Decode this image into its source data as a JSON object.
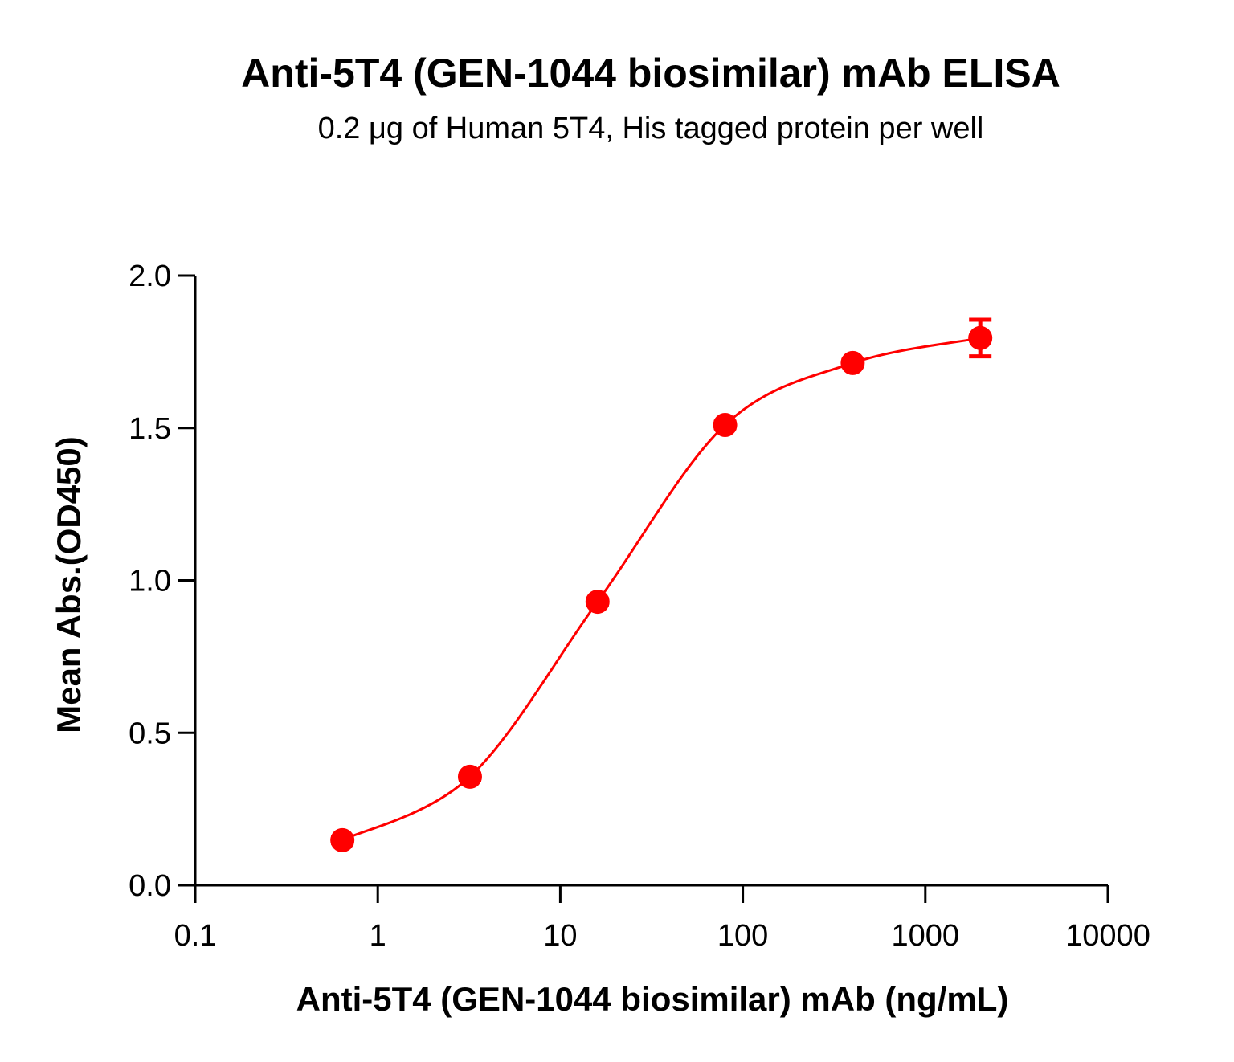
{
  "chart_data": {
    "type": "scatter",
    "title": "Anti-5T4 (GEN-1044 biosimilar) mAb ELISA",
    "subtitle": "0.2 μg of Human 5T4, His tagged protein per well",
    "x_label": "Anti-5T4 (GEN-1044 biosimilar) mAb (ng/mL)",
    "y_label": "Mean Abs.(OD450)",
    "xscale": "log",
    "xlim": [
      0.1,
      10000
    ],
    "xticks": [
      0.1,
      1,
      10,
      100,
      1000,
      10000
    ],
    "ylim": [
      0,
      2
    ],
    "yticks": [
      {
        "value": 0,
        "label": "0.0"
      },
      0.5,
      {
        "value": 1,
        "label": "1.0"
      },
      1.5,
      {
        "value": 2,
        "label": "2.0"
      }
    ],
    "grid": false,
    "series": [
      {
        "color": "#ff0000",
        "x": [
          0.64,
          3.2,
          16,
          80,
          400,
          2000
        ],
        "values": [
          0.148,
          0.356,
          0.93,
          1.51,
          1.713,
          1.795
        ],
        "errors": [
          0.01,
          0.01,
          0.01,
          0.01,
          0.01,
          0.06
        ]
      }
    ]
  }
}
